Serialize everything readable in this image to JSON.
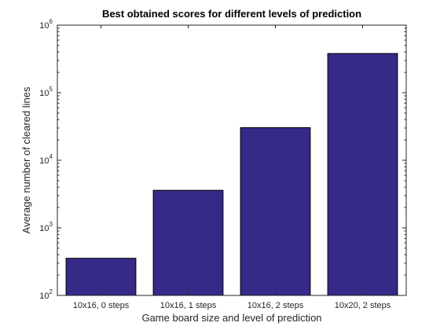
{
  "chart_data": {
    "type": "bar",
    "title": "Best obtained scores for different levels of prediction",
    "xlabel": "Game board size and level of prediction",
    "ylabel": "Average number of cleared lines",
    "yscale": "log",
    "ylim": [
      100,
      1000000
    ],
    "yticks": [
      {
        "base": "10",
        "exp": "2"
      },
      {
        "base": "10",
        "exp": "3"
      },
      {
        "base": "10",
        "exp": "4"
      },
      {
        "base": "10",
        "exp": "5"
      },
      {
        "base": "10",
        "exp": "6"
      }
    ],
    "categories": [
      "10x16, 0 steps",
      "10x16, 1 steps",
      "10x16, 2 steps",
      "10x20, 2 steps"
    ],
    "values": [
      355,
      3600,
      30500,
      380000
    ],
    "bar_color": "#352a87",
    "grid": false,
    "legend": "none"
  }
}
